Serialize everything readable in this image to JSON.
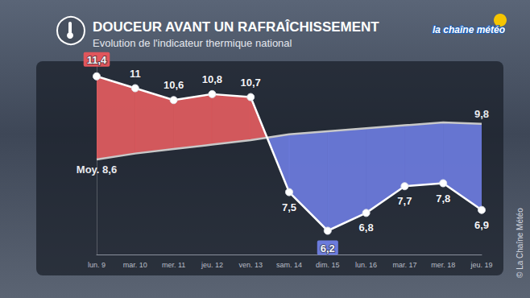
{
  "chart_data": {
    "type": "line",
    "title": "DOUCEUR AVANT UN RAFRAÎCHISSEMENT",
    "subtitle": "Evolution de l'indicateur thermique national",
    "logo": "la chaîne météo",
    "credit": "© La Chaîne Météo",
    "categories": [
      "lun. 9",
      "mar. 10",
      "mer. 11",
      "jeu. 12",
      "ven. 13",
      "sam. 14",
      "dim. 15",
      "lun. 16",
      "mar. 17",
      "mer. 18",
      "jeu. 19"
    ],
    "series": [
      {
        "values": [
          11.4,
          11,
          10.6,
          10.8,
          10.7,
          7.5,
          6.2,
          6.8,
          7.7,
          7.8,
          6.9
        ],
        "value_labels": [
          "11,4",
          "11",
          "10,6",
          "10,8",
          "10,7",
          "7,5",
          "6,2",
          "6,8",
          "7,7",
          "7,8",
          "6,9"
        ],
        "color": "#ffffff",
        "marker": "circle"
      },
      {
        "values": [
          8.6,
          8.8,
          8.95,
          9.1,
          9.25,
          9.45,
          9.55,
          9.65,
          9.75,
          9.85,
          9.8
        ],
        "value_labels": [
          "Moy. 8,6",
          null,
          null,
          null,
          null,
          null,
          null,
          null,
          null,
          null,
          "9,8"
        ],
        "color": "#c8c8c8",
        "marker": "none"
      }
    ],
    "ylim": [
      5.4,
      11.8
    ],
    "tick_labels": "x",
    "data_labels": true,
    "grid": false
  }
}
